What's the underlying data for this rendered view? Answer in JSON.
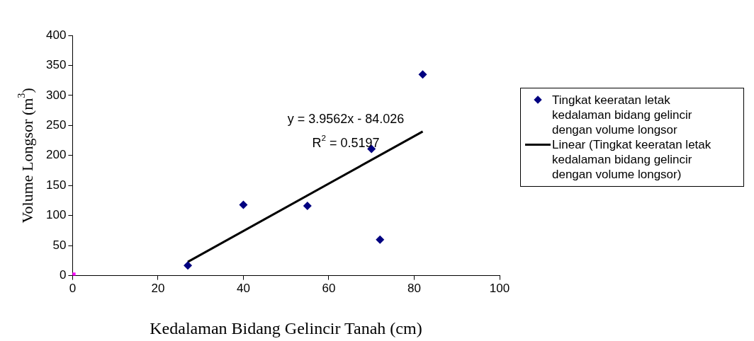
{
  "chart_data": {
    "type": "scatter",
    "xlabel": "Kedalaman Bidang Gelincir Tanah (cm)",
    "ylabel": "Volume Longsor (m$^{3}$)",
    "xlim": [
      0,
      100
    ],
    "xticks": [
      0,
      20,
      40,
      60,
      80,
      100
    ],
    "ylim": [
      0,
      400
    ],
    "yticks": [
      0,
      50,
      100,
      150,
      200,
      250,
      300,
      350,
      400
    ],
    "grid": false,
    "legend": "right",
    "series": [
      {
        "name": "Tingkat keeratan letak kedalaman bidang gelincir dengan volume longsor",
        "marker": "diamond",
        "color": "#000080",
        "x": [
          27,
          40,
          55,
          70,
          72,
          82
        ],
        "values": [
          17,
          118,
          116,
          211,
          60,
          335
        ]
      },
      {
        "name": "Linear (Tingkat keeratan letak kedalaman bidang gelincir dengan volume longsor)",
        "type": "line",
        "marker": "none",
        "color": "#000000",
        "x": [
          27,
          82
        ],
        "values": [
          23,
          240
        ]
      },
      {
        "marker": "square",
        "color": "#ff00ff",
        "x": [
          0
        ],
        "values": [
          0
        ]
      }
    ],
    "annotations": [
      "y = 3.9562x - 84.026",
      "R$^{2}$ = 0.5197"
    ]
  }
}
